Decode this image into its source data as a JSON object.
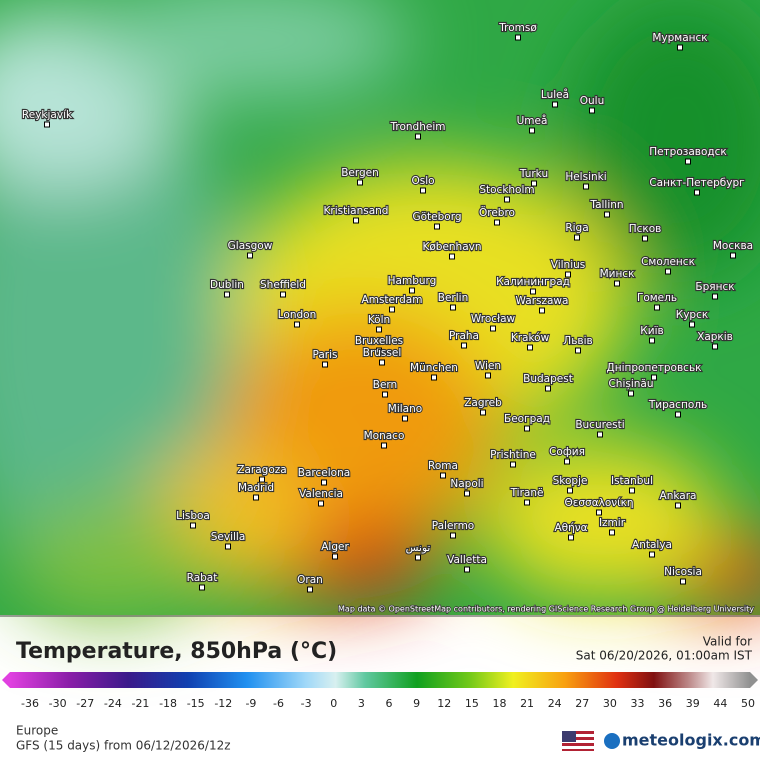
{
  "header": {
    "title": "Temperature, 850hPa (°C)",
    "valid_label": "Valid for",
    "valid_time": "Sat 06/20/2026, 01:00am IST",
    "region": "Europe",
    "model": "GFS (15 days) from 06/12/2026/12z",
    "brand": "meteologix.com"
  },
  "map": {
    "attribution": "Map data © OpenStreetMap contributors, rendering GIScience Research Group @ Heidelberg University",
    "cities": [
      "Reykjavík",
      "Tromsø",
      "Мурманск",
      "Luleå",
      "Oulu",
      "Umeå",
      "Trondheim",
      "Bergen",
      "Oslo",
      "Turku",
      "Helsinki",
      "Петрозаводск",
      "Санкт-Петербург",
      "Stockholm",
      "Örebro",
      "Göteborg",
      "Kristiansand",
      "Tallinn",
      "Riga",
      "Псков",
      "København",
      "Москва",
      "Glasgow",
      "Dublin",
      "Sheffield",
      "Vilnius",
      "Минск",
      "Смоленск",
      "Hamburg",
      "Калининград",
      "Брянск",
      "Гомель",
      "Amsterdam",
      "Berlin",
      "Warszawa",
      "London",
      "Köln",
      "Wrocław",
      "Курск",
      "Київ",
      "Харків",
      "Praha",
      "Kraków",
      "Львів",
      "Bruxelles",
      "Brussel",
      "Paris",
      "München",
      "Wien",
      "Дніпропетровськ",
      "Chișinău",
      "Budapest",
      "Bern",
      "Milano",
      "Zagreb",
      "Тирасполь",
      "Београд",
      "Monaco",
      "Bucuresti",
      "Prishtine",
      "София",
      "Zaragoza",
      "Barcelona",
      "Roma",
      "Istanbul",
      "Madrid",
      "Valencia",
      "Napoli",
      "Skopje",
      "Tiranë",
      "Θεσσαλονίκη",
      "Ankara",
      "Lisboa",
      "Sevilla",
      "Palermo",
      "Izmir",
      "Αθήνα",
      "Alger",
      "تونس",
      "Antalya",
      "Valletta",
      "Rabat",
      "Oran",
      "Nicosia"
    ]
  },
  "legend": {
    "ticks": [
      -36,
      -30,
      -27,
      -24,
      -21,
      -18,
      -15,
      -12,
      -9,
      -6,
      -3,
      0,
      3,
      6,
      9,
      12,
      15,
      18,
      21,
      24,
      27,
      30,
      33,
      36,
      39,
      44,
      50
    ]
  }
}
